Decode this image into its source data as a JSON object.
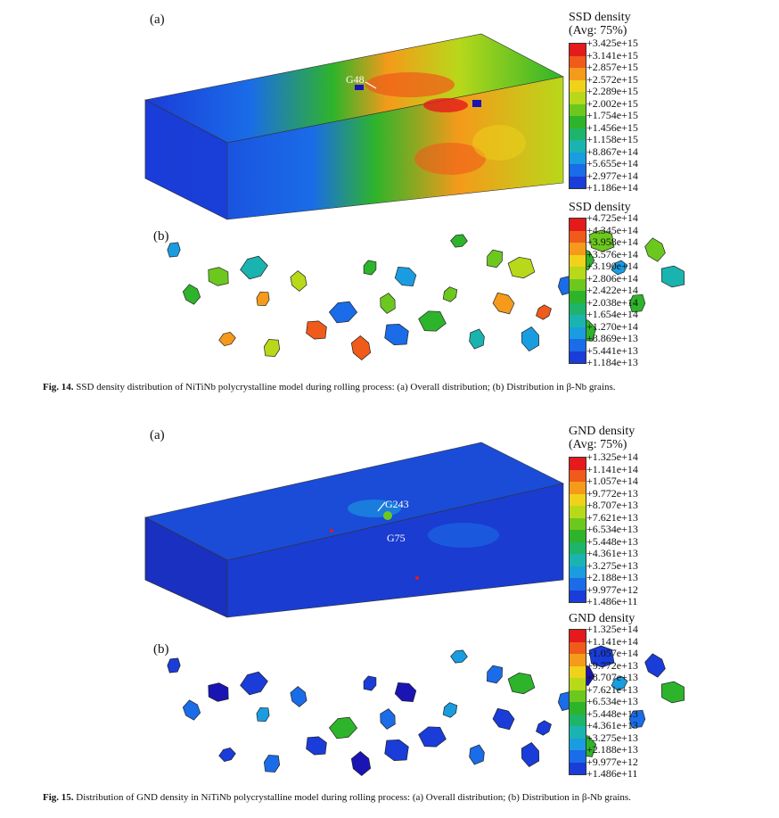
{
  "fig14": {
    "label_a": "(a)",
    "label_b": "(b)",
    "legend_a": {
      "title": "SSD density",
      "subtitle": "(Avg: 75%)",
      "ticks": [
        "+3.425e+15",
        "+3.141e+15",
        "+2.857e+15",
        "+2.572e+15",
        "+2.289e+15",
        "+2.002e+15",
        "+1.754e+15",
        "+1.456e+15",
        "+1.158e+15",
        "+8.867e+14",
        "+5.655e+14",
        "+2.977e+14",
        "+1.186e+14"
      ]
    },
    "legend_b": {
      "title": "SSD density",
      "ticks": [
        "+4.725e+14",
        "+4.345e+14",
        "+3.958e+14",
        "+3.576e+14",
        "+3.190e+14",
        "+2.806e+14",
        "+2.422e+14",
        "+2.038e+14",
        "+1.654e+14",
        "+1.270e+14",
        "+8.869e+13",
        "+5.441e+13",
        "+1.184e+13"
      ]
    },
    "grain_label": "G48",
    "caption_label": "Fig. 14.",
    "caption_text": " SSD density distribution of NiTiNb polycrystalline model during rolling process: (a) Overall distribution; (b) Distribution in β-Nb grains."
  },
  "fig15": {
    "label_a": "(a)",
    "label_b": "(b)",
    "legend_a": {
      "title": "GND density",
      "subtitle": "(Avg: 75%)",
      "ticks": [
        "+1.325e+14",
        "+1.141e+14",
        "+1.057e+14",
        "+9.772e+13",
        "+8.707e+13",
        "+7.621e+13",
        "+6.534e+13",
        "+5.448e+13",
        "+4.361e+13",
        "+3.275e+13",
        "+2.188e+13",
        "+9.977e+12",
        "+1.486e+11"
      ]
    },
    "legend_b": {
      "title": "GND density",
      "ticks": [
        "+1.325e+14",
        "+1.141e+14",
        "+1.057e+14",
        "+9.772e+13",
        "+8.707e+13",
        "+7.621e+13",
        "+6.534e+13",
        "+5.448e+13",
        "+4.361e+13",
        "+3.275e+13",
        "+2.188e+13",
        "+9.977e+12",
        "+1.486e+11"
      ]
    },
    "grain_label_1": "G243",
    "grain_label_2": "G75",
    "caption_label": "Fig. 15.",
    "caption_text": " Distribution of GND density in NiTiNb polycrystalline model during rolling process: (a) Overall distribution; (b) Distribution in β-Nb grains."
  },
  "colormap": [
    "#e41a1c",
    "#f05a1a",
    "#f59a1a",
    "#f0d21a",
    "#b8d81a",
    "#6cc81e",
    "#2eb42a",
    "#1eb46a",
    "#1ab4b0",
    "#1a9ce0",
    "#1a6ce8",
    "#1a3cd8",
    "#1a14b4"
  ]
}
